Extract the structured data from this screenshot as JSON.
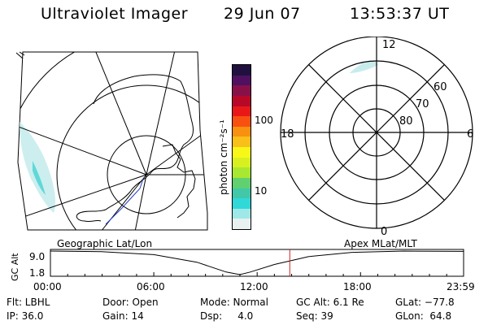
{
  "header": {
    "instrument": "Ultraviolet Imager",
    "date": "29 Jun 07",
    "time": "13:53:37 UT"
  },
  "colorbar": {
    "unit_label": "photon cm⁻²s⁻¹",
    "ticks": [
      "100",
      "10"
    ],
    "colors": [
      "#e8f0f0",
      "#9ee8e8",
      "#30d8d8",
      "#40c8a8",
      "#60d070",
      "#a8e830",
      "#d8f020",
      "#f8f818",
      "#f8c018",
      "#f89010",
      "#f85010",
      "#e81818",
      "#b80828",
      "#881048",
      "#501060",
      "#201040"
    ]
  },
  "geo_map": {
    "label": "Geographic Lat/Lon",
    "emission_color": "#c8ecec"
  },
  "polar_grid": {
    "label": "Apex MLat/MLT",
    "mlt_labels": {
      "top": "12",
      "bottom": "0",
      "left": "18",
      "right": "6"
    },
    "lat_labels": [
      "60",
      "70",
      "80"
    ]
  },
  "chart_data": {
    "type": "line",
    "title": "",
    "ylabel": "GC Alt",
    "yticks": [
      "9.0",
      "1.8"
    ],
    "ylim": [
      1.8,
      9.0
    ],
    "xticks": [
      "00:00",
      "06:00",
      "12:00",
      "18:00",
      "23:59"
    ],
    "xlim_hours": [
      0,
      23.983
    ],
    "series": [
      {
        "points": [
          [
            0.0,
            9.0
          ],
          [
            3.0,
            8.8
          ],
          [
            6.0,
            7.9
          ],
          [
            8.5,
            5.6
          ],
          [
            10.2,
            2.6
          ],
          [
            11.0,
            1.8
          ],
          [
            11.6,
            2.6
          ],
          [
            13.0,
            4.9
          ],
          [
            15.0,
            7.3
          ],
          [
            17.5,
            8.6
          ],
          [
            20.5,
            9.0
          ],
          [
            23.98,
            8.9
          ]
        ]
      }
    ],
    "current_time_hours": 13.894,
    "current_time_color": "#d02020",
    "grid": false
  },
  "info": {
    "row1": [
      "Flt: LBHL",
      "Door: Open",
      "Mode: Normal",
      "GC Alt: 6.1 Re",
      "GLat: −77.8"
    ],
    "row2": [
      "IP: 36.0",
      "Gain: 14",
      "Dsp:     4.0",
      "Seq: 39",
      "GLon:  64.8"
    ]
  }
}
